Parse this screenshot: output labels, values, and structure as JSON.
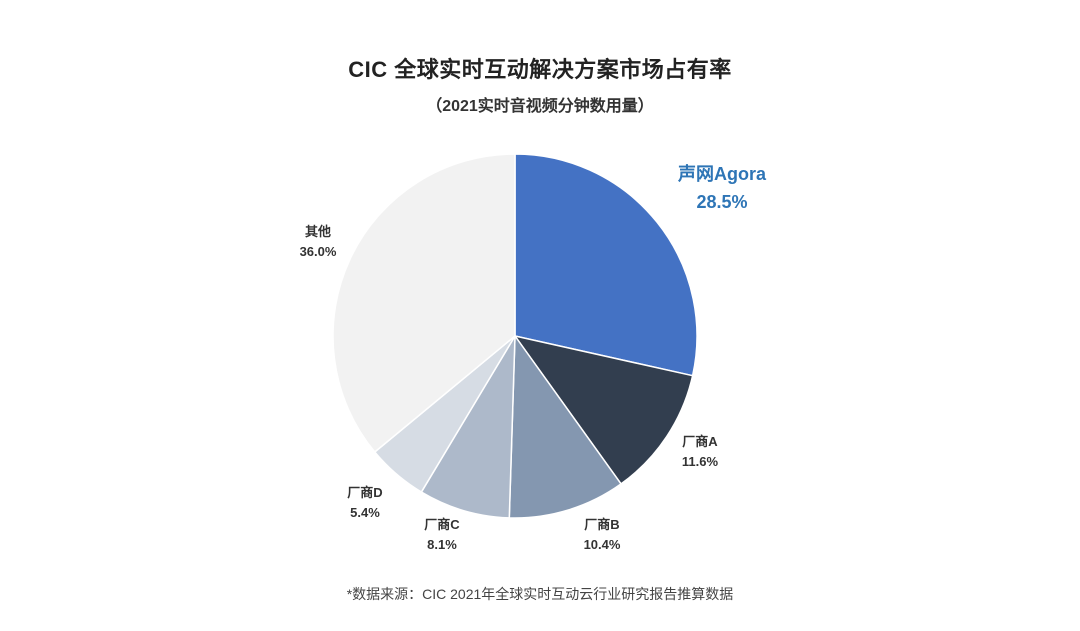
{
  "chart_data": {
    "type": "pie",
    "title": "CIC 全球实时互动解决方案市场占有率",
    "subtitle": "（2021实时音视频分钟数用量）",
    "slices": [
      {
        "label": "声网Agora",
        "value": 28.5,
        "display": "28.5%",
        "color": "#4472C4",
        "label_color": "#2E75B6"
      },
      {
        "label": "厂商A",
        "value": 11.6,
        "display": "11.6%",
        "color": "#323E4F",
        "label_color": "#333333"
      },
      {
        "label": "厂商B",
        "value": 10.4,
        "display": "10.4%",
        "color": "#8497B0",
        "label_color": "#333333"
      },
      {
        "label": "厂商C",
        "value": 8.1,
        "display": "8.1%",
        "color": "#ADB9CA",
        "label_color": "#333333"
      },
      {
        "label": "厂商D",
        "value": 5.4,
        "display": "5.4%",
        "color": "#D6DCE4",
        "label_color": "#333333"
      },
      {
        "label": "其他",
        "value": 36.0,
        "display": "36.0%",
        "color": "#F2F2F2",
        "label_color": "#333333"
      }
    ],
    "start": "12 o'clock",
    "direction": "clockwise",
    "highlighted": "声网Agora"
  },
  "footnote": "*数据来源：CIC 2021年全球实时互动云行业研究报告推算数据"
}
